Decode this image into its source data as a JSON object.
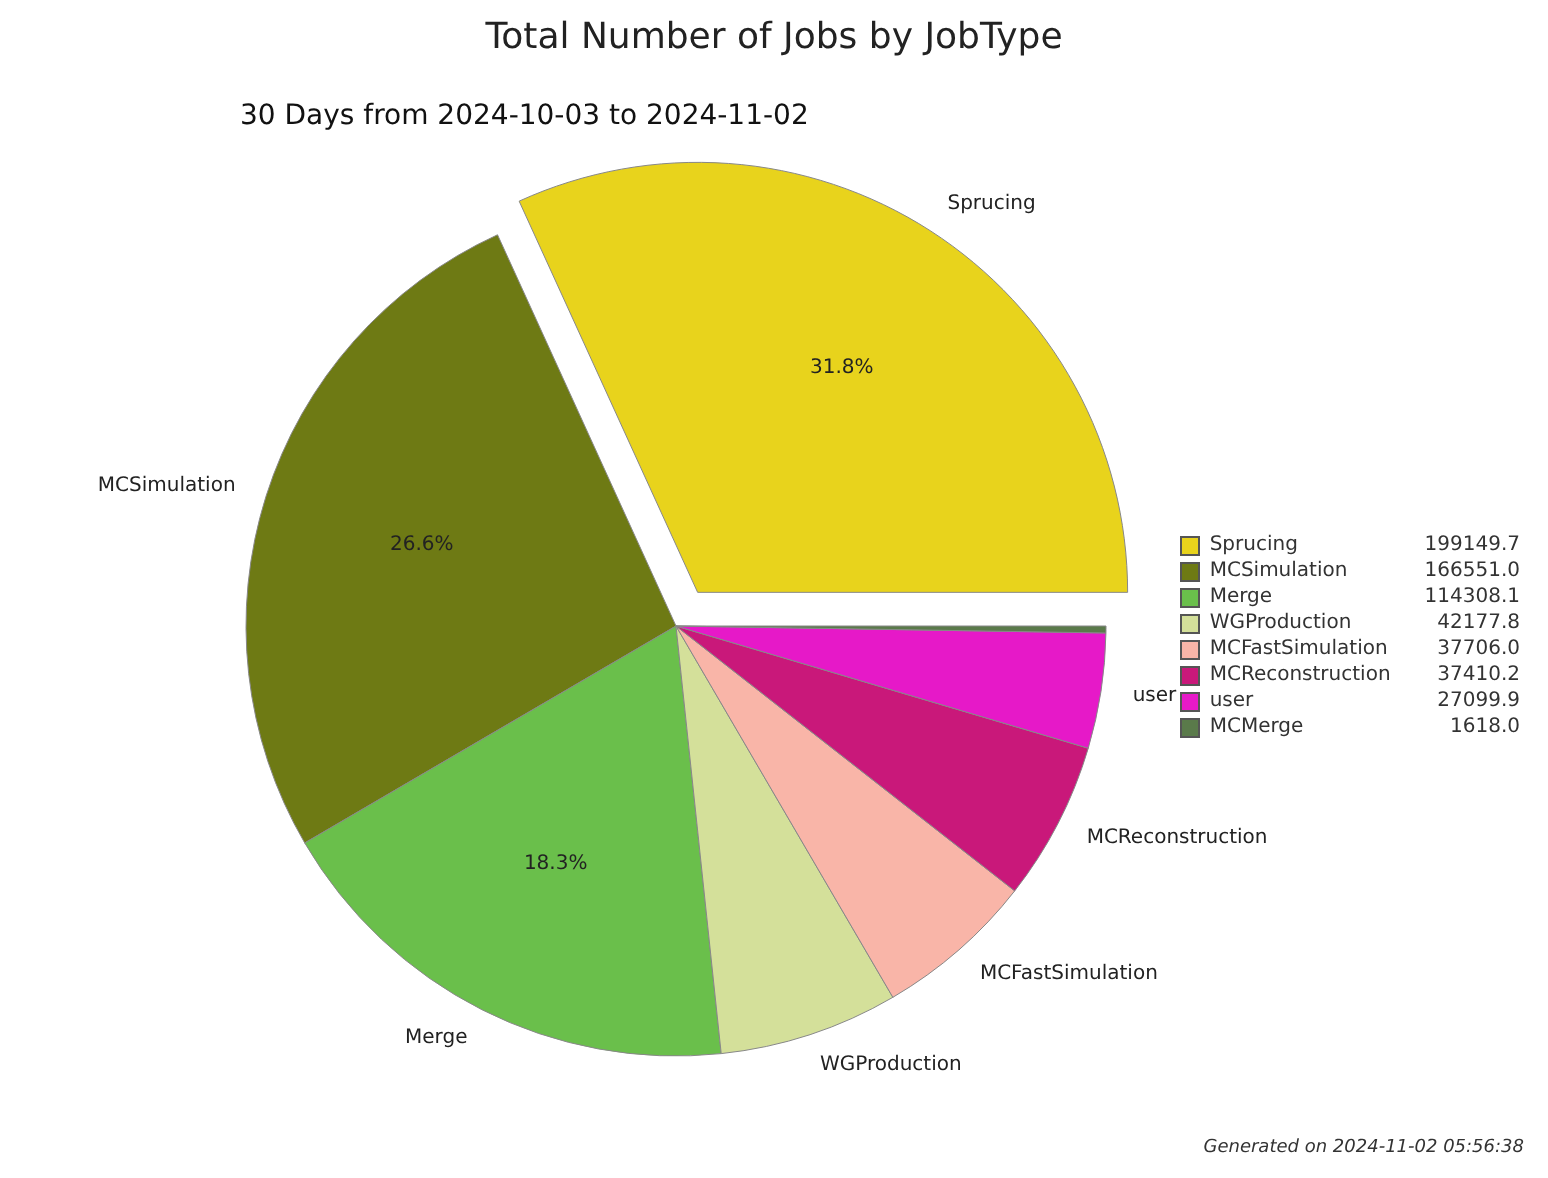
{
  "chart_data": {
    "type": "pie",
    "title": "Total Number of Jobs by JobType",
    "subtitle": "30 Days from 2024-10-03 to 2024-11-02",
    "categories": [
      "Sprucing",
      "MCSimulation",
      "Merge",
      "WGProduction",
      "MCFastSimulation",
      "MCReconstruction",
      "user",
      "MCMerge"
    ],
    "values": [
      199149.7,
      166551.0,
      114308.1,
      42177.8,
      37706.0,
      37410.2,
      27099.9,
      1618.0
    ],
    "value_labels": [
      "199149.7",
      "166551.0",
      "114308.1",
      "42177.8",
      "37706.0",
      "37410.2",
      "27099.9",
      "1618.0"
    ],
    "colors": [
      "#e8d31c",
      "#6e7a14",
      "#6abf4b",
      "#d4e09a",
      "#f9b5a8",
      "#c9187a",
      "#e619c8",
      "#5a7a4a"
    ],
    "legend": "right",
    "annotations": [
      {
        "text": "31.8%",
        "x": "Sprucing"
      },
      {
        "text": "26.6%",
        "x": "MCSimulation"
      },
      {
        "text": "18.3%",
        "x": "Merge"
      },
      "Generated on 2024-11-02 05:56:38"
    ]
  }
}
